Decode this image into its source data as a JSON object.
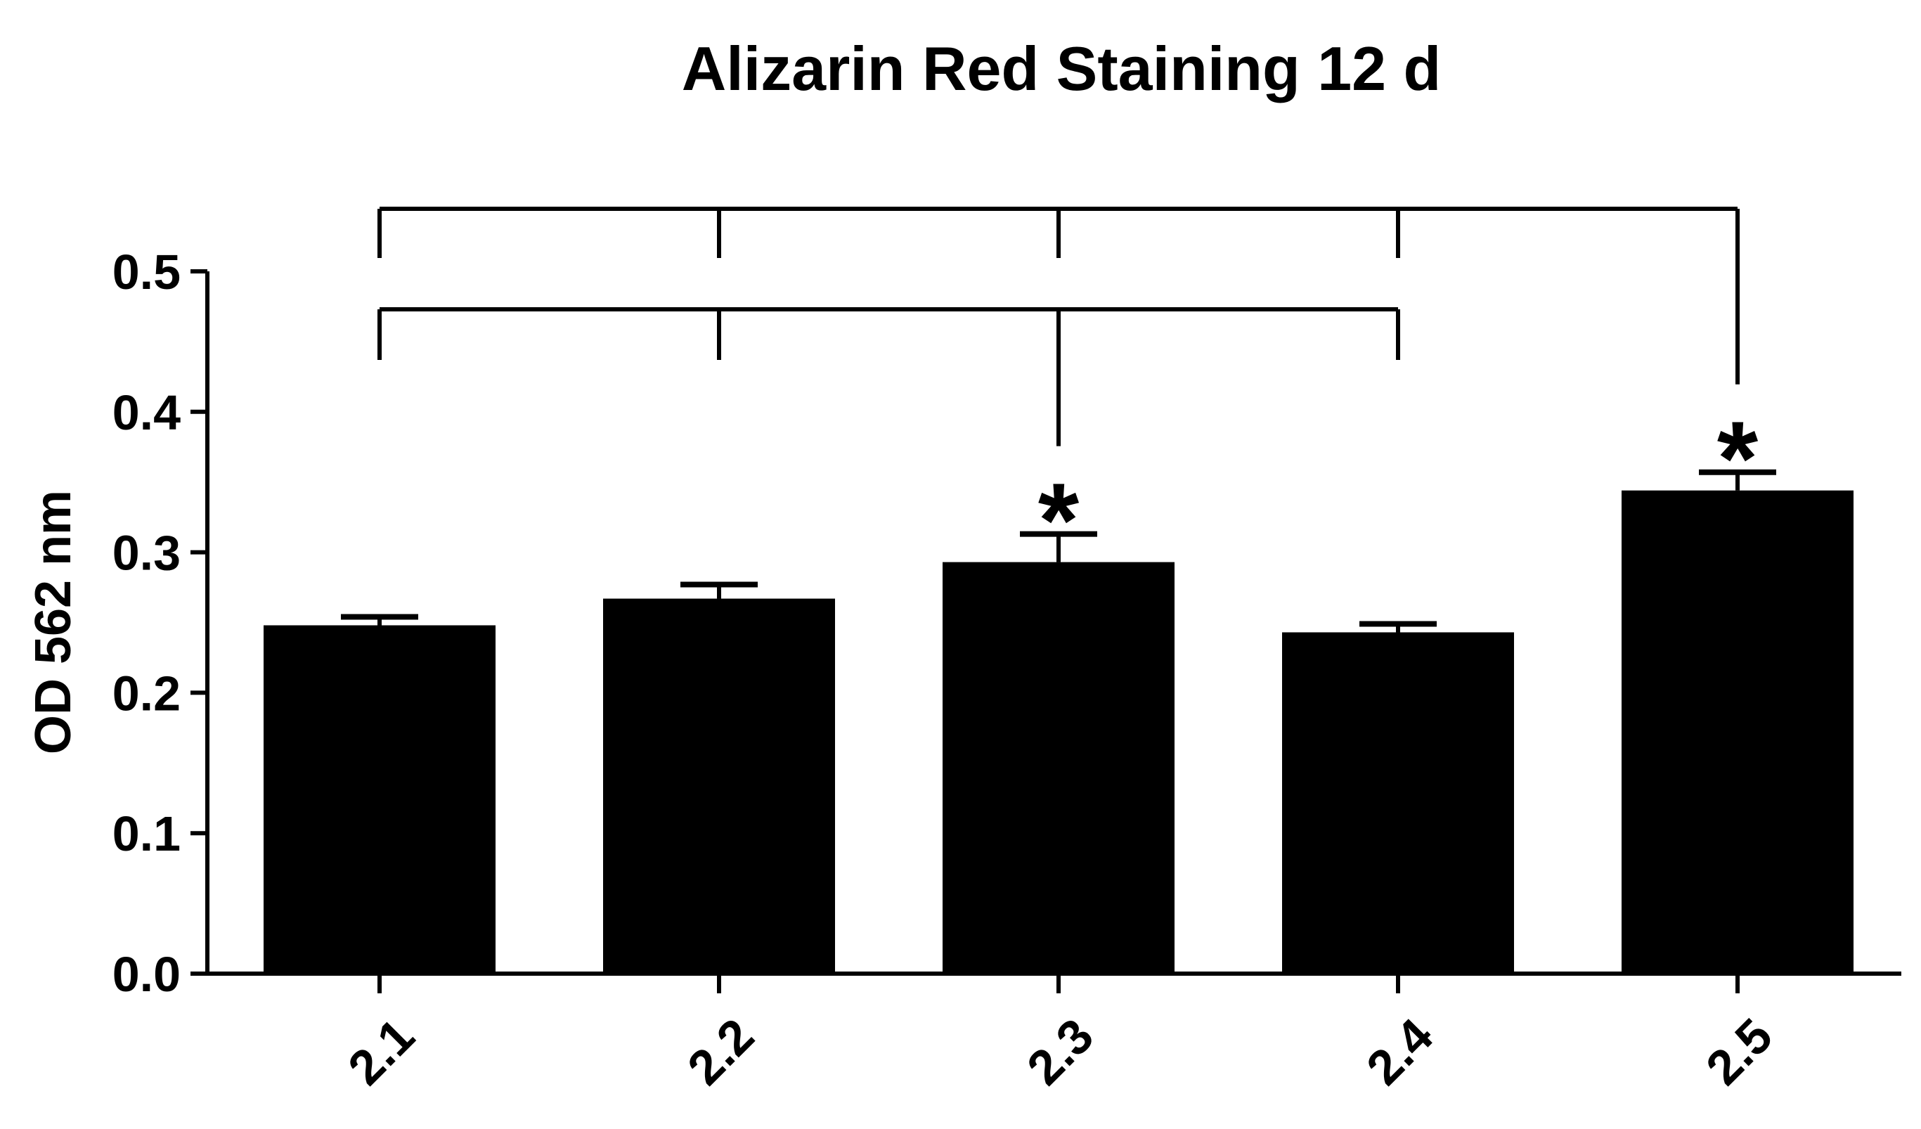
{
  "chart_data": {
    "type": "bar",
    "title": "Alizarin Red Staining 12 d",
    "xlabel": "",
    "ylabel": "OD 562 nm",
    "categories": [
      "2.1",
      "2.2",
      "2.3",
      "2.4",
      "2.5"
    ],
    "values": [
      0.248,
      0.267,
      0.293,
      0.243,
      0.344
    ],
    "error": [
      0.006,
      0.01,
      0.02,
      0.006,
      0.013
    ],
    "ylim": [
      0,
      0.5
    ],
    "yticks": [
      "0.0",
      "0.1",
      "0.2",
      "0.3",
      "0.4",
      "0.5"
    ],
    "grid": false,
    "bar_color": "#000000",
    "annotations": [
      {
        "category": "2.3",
        "text": "*"
      },
      {
        "category": "2.5",
        "text": "*"
      }
    ],
    "brackets": [
      {
        "from": "2.1",
        "to": "2.5",
        "target": "2.5"
      },
      {
        "from": "2.1",
        "to": "2.4",
        "target": "2.3"
      }
    ]
  }
}
